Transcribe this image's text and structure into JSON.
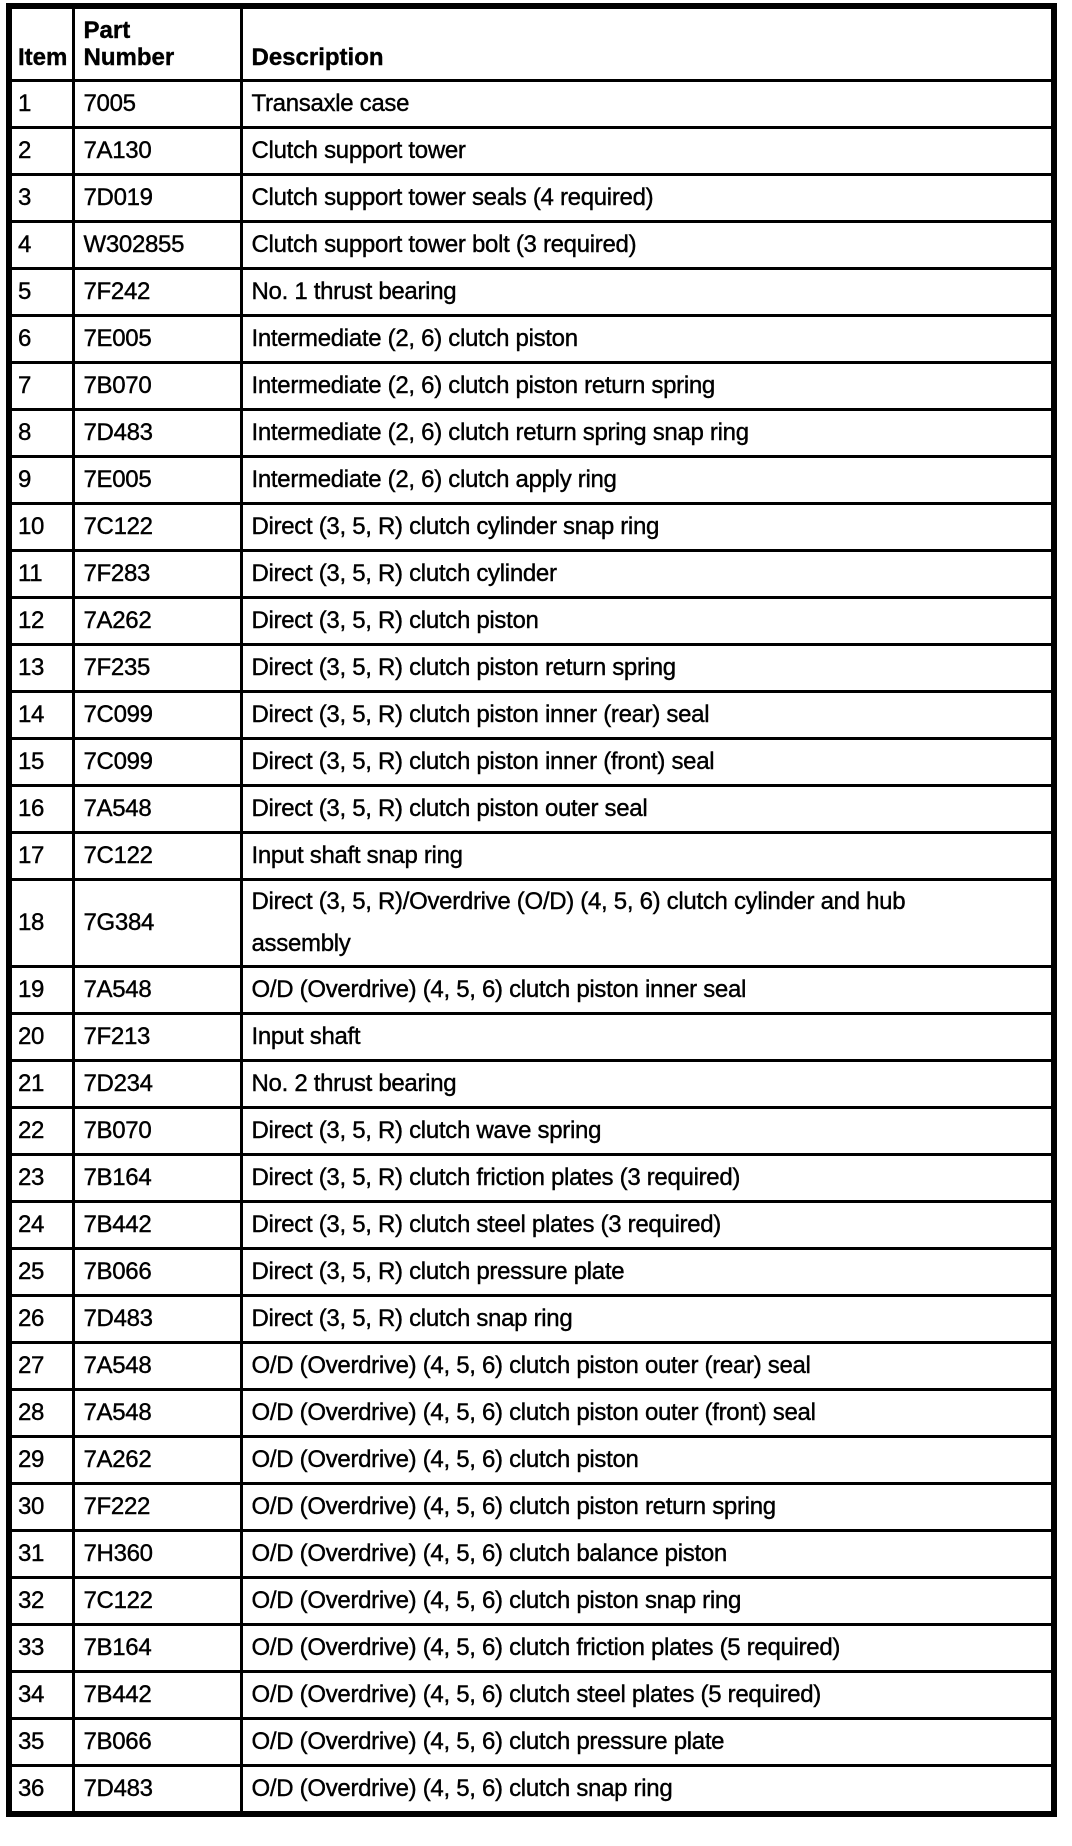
{
  "colors": {
    "text": "#000000",
    "background": "#ffffff",
    "border": "#000000"
  },
  "table": {
    "headers": {
      "item": "Item",
      "part_number": "Part\nNumber",
      "description": "Description"
    },
    "rows": [
      {
        "item": "1",
        "part": "7005",
        "desc": "Transaxle case"
      },
      {
        "item": "2",
        "part": "7A130",
        "desc": "Clutch support tower"
      },
      {
        "item": "3",
        "part": "7D019",
        "desc": "Clutch support tower seals (4 required)"
      },
      {
        "item": "4",
        "part": "W302855",
        "desc": "Clutch support tower bolt (3 required)"
      },
      {
        "item": "5",
        "part": "7F242",
        "desc": "No. 1 thrust bearing"
      },
      {
        "item": "6",
        "part": "7E005",
        "desc": "Intermediate (2, 6) clutch piston"
      },
      {
        "item": "7",
        "part": "7B070",
        "desc": "Intermediate (2, 6) clutch piston return spring"
      },
      {
        "item": "8",
        "part": "7D483",
        "desc": "Intermediate (2, 6) clutch return spring snap ring"
      },
      {
        "item": "9",
        "part": "7E005",
        "desc": "Intermediate (2, 6) clutch apply ring"
      },
      {
        "item": "10",
        "part": "7C122",
        "desc": "Direct (3, 5, R) clutch cylinder snap ring"
      },
      {
        "item": "11",
        "part": "7F283",
        "desc": "Direct (3, 5, R) clutch cylinder"
      },
      {
        "item": "12",
        "part": "7A262",
        "desc": "Direct (3, 5, R) clutch piston"
      },
      {
        "item": "13",
        "part": "7F235",
        "desc": "Direct (3, 5, R) clutch piston return spring"
      },
      {
        "item": "14",
        "part": "7C099",
        "desc": "Direct (3, 5, R) clutch piston inner (rear) seal"
      },
      {
        "item": "15",
        "part": "7C099",
        "desc": "Direct (3, 5, R) clutch piston inner (front) seal"
      },
      {
        "item": "16",
        "part": "7A548",
        "desc": "Direct (3, 5, R) clutch piston outer seal"
      },
      {
        "item": "17",
        "part": "7C122",
        "desc": "Input shaft snap ring"
      },
      {
        "item": "18",
        "part": "7G384",
        "desc": "Direct (3, 5, R)/Overdrive (O/D) (4, 5, 6) clutch cylinder and hub\nassembly"
      },
      {
        "item": "19",
        "part": "7A548",
        "desc": "O/D (Overdrive) (4, 5, 6) clutch piston inner seal"
      },
      {
        "item": "20",
        "part": "7F213",
        "desc": "Input shaft"
      },
      {
        "item": "21",
        "part": "7D234",
        "desc": "No. 2 thrust bearing"
      },
      {
        "item": "22",
        "part": "7B070",
        "desc": "Direct (3, 5, R) clutch wave spring"
      },
      {
        "item": "23",
        "part": "7B164",
        "desc": "Direct (3, 5, R) clutch friction plates (3 required)"
      },
      {
        "item": "24",
        "part": "7B442",
        "desc": "Direct (3, 5, R) clutch steel plates (3 required)"
      },
      {
        "item": "25",
        "part": "7B066",
        "desc": "Direct (3, 5, R) clutch pressure plate"
      },
      {
        "item": "26",
        "part": "7D483",
        "desc": "Direct (3, 5, R) clutch snap ring"
      },
      {
        "item": "27",
        "part": "7A548",
        "desc": "O/D (Overdrive) (4, 5, 6) clutch piston outer (rear) seal"
      },
      {
        "item": "28",
        "part": "7A548",
        "desc": "O/D (Overdrive) (4, 5, 6) clutch piston outer (front) seal"
      },
      {
        "item": "29",
        "part": "7A262",
        "desc": "O/D (Overdrive) (4, 5, 6) clutch piston"
      },
      {
        "item": "30",
        "part": "7F222",
        "desc": "O/D (Overdrive) (4, 5, 6) clutch piston return spring"
      },
      {
        "item": "31",
        "part": "7H360",
        "desc": "O/D (Overdrive) (4, 5, 6) clutch balance piston"
      },
      {
        "item": "32",
        "part": "7C122",
        "desc": "O/D (Overdrive) (4, 5, 6) clutch piston snap ring"
      },
      {
        "item": "33",
        "part": "7B164",
        "desc": "O/D (Overdrive) (4, 5, 6) clutch friction plates (5 required)"
      },
      {
        "item": "34",
        "part": "7B442",
        "desc": "O/D (Overdrive) (4, 5, 6) clutch steel plates (5 required)"
      },
      {
        "item": "35",
        "part": "7B066",
        "desc": "O/D (Overdrive) (4, 5, 6) clutch pressure plate"
      },
      {
        "item": "36",
        "part": "7D483",
        "desc": "O/D (Overdrive) (4, 5, 6) clutch snap ring"
      }
    ]
  }
}
